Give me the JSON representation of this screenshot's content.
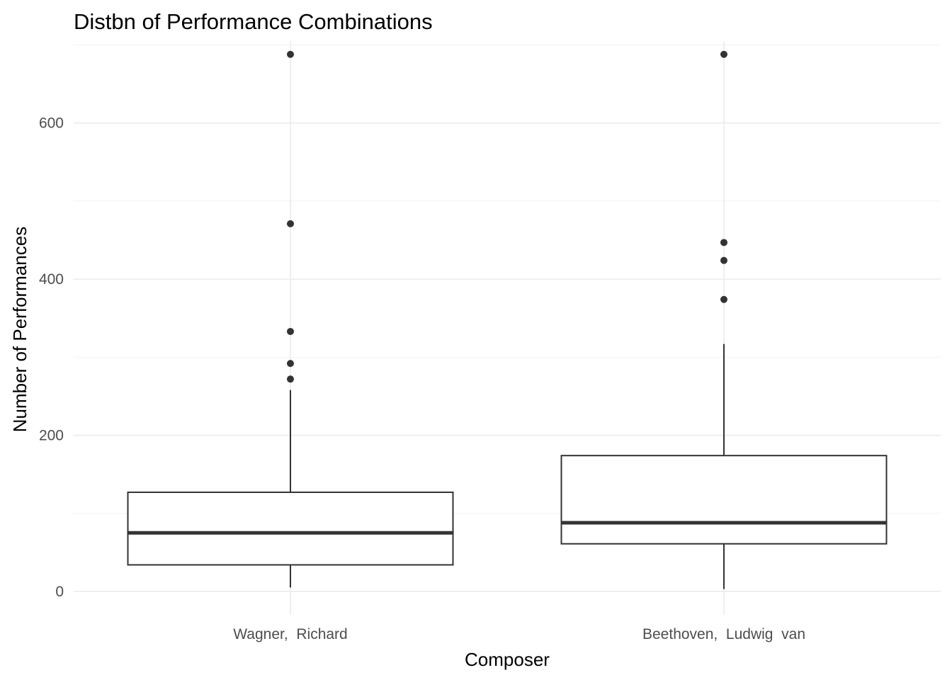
{
  "chart_data": {
    "type": "boxplot",
    "title": "Distbn of Performance Combinations",
    "xlabel": "Composer",
    "ylabel": "Number of Performances",
    "categories": [
      "Wagner,  Richard",
      "Beethoven,  Ludwig  van"
    ],
    "ylim": [
      -30,
      705
    ],
    "y_ticks": [
      0,
      200,
      400,
      600
    ],
    "y_tick_labels": [
      "0",
      "200",
      "400",
      "600"
    ],
    "grid": true,
    "boxes": [
      {
        "category": "Wagner,  Richard",
        "lower_whisker": 5,
        "q1": 34,
        "median": 75,
        "q3": 127,
        "upper_whisker": 258,
        "outliers": [
          272,
          292,
          333,
          471,
          688
        ]
      },
      {
        "category": "Beethoven,  Ludwig  van",
        "lower_whisker": 3,
        "q1": 61,
        "median": 88,
        "q3": 174,
        "upper_whisker": 317,
        "outliers": [
          374,
          424,
          447,
          688
        ]
      }
    ],
    "colors": {
      "box_line": "#333333",
      "outlier": "#333333",
      "grid_major": "#ebebeb",
      "grid_minor": "#f2f2f2",
      "tick_text": "#4d4d4d"
    }
  }
}
